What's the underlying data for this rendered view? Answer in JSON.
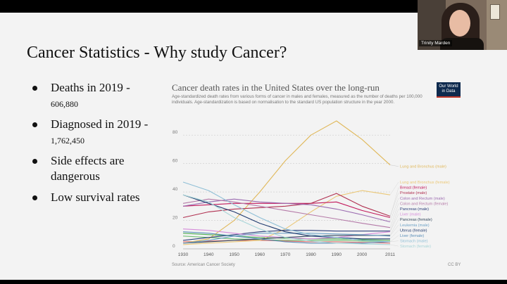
{
  "slide": {
    "title": "Cancer Statistics - Why study Cancer?",
    "bullets": [
      {
        "main": "Deaths in 2019 -",
        "detail": "606,880"
      },
      {
        "main": "Diagnosed in 2019 -",
        "detail": "1,762,450"
      },
      {
        "main": "Side effects are dangerous",
        "detail": ""
      },
      {
        "main": "Low survival rates",
        "detail": ""
      }
    ]
  },
  "webcam": {
    "participant_name": "Trinity Marden"
  },
  "chart": {
    "logo_line1": "Our World",
    "logo_line2": "in Data",
    "source": "Source: American Cancer Society",
    "license": "CC BY"
  },
  "chart_data": {
    "type": "line",
    "title": "Cancer death rates in the United States over the long-run",
    "subtitle": "Age-standardized death rates from various forms of cancer in males and females, measured as the number of deaths per 100,000 individuals. Age-standardization is based on normalisation to the standard US population structure in the year 2000.",
    "xlim": [
      1930,
      2011
    ],
    "ylim": [
      0,
      90
    ],
    "x_ticks": [
      "1930",
      "1940",
      "1950",
      "1960",
      "1970",
      "1980",
      "1990",
      "2000",
      "2011"
    ],
    "y_ticks": [
      "0",
      "20",
      "40",
      "60",
      "80"
    ],
    "grid": "horizontal-dotted",
    "series": [
      {
        "name": "Lung and Bronchus (male)",
        "color": "#e0b85a",
        "points": [
          [
            1930,
            4
          ],
          [
            1940,
            7
          ],
          [
            1950,
            20
          ],
          [
            1960,
            40
          ],
          [
            1970,
            62
          ],
          [
            1980,
            80
          ],
          [
            1990,
            90
          ],
          [
            2000,
            77
          ],
          [
            2011,
            59
          ]
        ]
      },
      {
        "name": "Lung and Bronchus (female)",
        "color": "#ebc878",
        "points": [
          [
            1930,
            3
          ],
          [
            1940,
            4
          ],
          [
            1950,
            5
          ],
          [
            1960,
            6
          ],
          [
            1970,
            14
          ],
          [
            1980,
            26
          ],
          [
            1990,
            37
          ],
          [
            2000,
            41
          ],
          [
            2011,
            38
          ]
        ]
      },
      {
        "name": "Breast (female)",
        "color": "#c2185b",
        "points": [
          [
            1930,
            30
          ],
          [
            1940,
            31
          ],
          [
            1950,
            32
          ],
          [
            1960,
            32
          ],
          [
            1970,
            32
          ],
          [
            1980,
            32
          ],
          [
            1990,
            33
          ],
          [
            2000,
            27
          ],
          [
            2011,
            22
          ]
        ]
      },
      {
        "name": "Prostate (male)",
        "color": "#b03050",
        "points": [
          [
            1930,
            22
          ],
          [
            1940,
            26
          ],
          [
            1950,
            28
          ],
          [
            1960,
            29
          ],
          [
            1970,
            30
          ],
          [
            1980,
            32
          ],
          [
            1990,
            39
          ],
          [
            2000,
            30
          ],
          [
            2011,
            23
          ]
        ]
      },
      {
        "name": "Colon and Rectum (male)",
        "color": "#9b6bb0",
        "points": [
          [
            1930,
            30
          ],
          [
            1940,
            33
          ],
          [
            1950,
            35
          ],
          [
            1960,
            33
          ],
          [
            1970,
            32
          ],
          [
            1980,
            31
          ],
          [
            1990,
            28
          ],
          [
            2000,
            24
          ],
          [
            2011,
            19
          ]
        ]
      },
      {
        "name": "Colon and Rectum (female)",
        "color": "#b57aa8",
        "points": [
          [
            1930,
            32
          ],
          [
            1940,
            35
          ],
          [
            1950,
            33
          ],
          [
            1960,
            30
          ],
          [
            1970,
            27
          ],
          [
            1980,
            24
          ],
          [
            1990,
            21
          ],
          [
            2000,
            18
          ],
          [
            2011,
            15
          ]
        ]
      },
      {
        "name": "Pancreas (male)",
        "color": "#2c3e7a",
        "points": [
          [
            1930,
            6
          ],
          [
            1940,
            8
          ],
          [
            1950,
            10
          ],
          [
            1960,
            12
          ],
          [
            1970,
            13
          ],
          [
            1980,
            13
          ],
          [
            1990,
            12.5
          ],
          [
            2000,
            12.5
          ],
          [
            2011,
            12.5
          ]
        ]
      },
      {
        "name": "Liver (male)",
        "color": "#d58bd9",
        "points": [
          [
            1930,
            14
          ],
          [
            1940,
            13
          ],
          [
            1950,
            11
          ],
          [
            1960,
            9
          ],
          [
            1970,
            8
          ],
          [
            1980,
            7
          ],
          [
            1990,
            8
          ],
          [
            2000,
            10
          ],
          [
            2011,
            12
          ]
        ]
      },
      {
        "name": "Pancreas (female)",
        "color": "#34495e",
        "points": [
          [
            1930,
            4
          ],
          [
            1940,
            5
          ],
          [
            1950,
            6
          ],
          [
            1960,
            7
          ],
          [
            1970,
            8
          ],
          [
            1980,
            9
          ],
          [
            1990,
            9.5
          ],
          [
            2000,
            9.5
          ],
          [
            2011,
            9.5
          ]
        ]
      },
      {
        "name": "Leukemia (male)",
        "color": "#6fa3c7",
        "points": [
          [
            1930,
            4
          ],
          [
            1940,
            6
          ],
          [
            1950,
            9
          ],
          [
            1960,
            11
          ],
          [
            1970,
            11
          ],
          [
            1980,
            11
          ],
          [
            1990,
            10.5
          ],
          [
            2000,
            10
          ],
          [
            2011,
            9
          ]
        ]
      },
      {
        "name": "Uterus (female)",
        "color": "#1f3a6e",
        "points": [
          [
            1930,
            38
          ],
          [
            1940,
            32
          ],
          [
            1950,
            26
          ],
          [
            1960,
            18
          ],
          [
            1970,
            12
          ],
          [
            1980,
            9
          ],
          [
            1990,
            8
          ],
          [
            2000,
            7
          ],
          [
            2011,
            7
          ]
        ]
      },
      {
        "name": "Liver (female)",
        "color": "#5b8fb9",
        "points": [
          [
            1930,
            12
          ],
          [
            1940,
            11
          ],
          [
            1950,
            9
          ],
          [
            1960,
            7
          ],
          [
            1970,
            5
          ],
          [
            1980,
            4
          ],
          [
            1990,
            4
          ],
          [
            2000,
            4
          ],
          [
            2011,
            5
          ]
        ]
      },
      {
        "name": "Stomach (male)",
        "color": "#8fbfd6",
        "points": [
          [
            1930,
            47
          ],
          [
            1940,
            41
          ],
          [
            1950,
            31
          ],
          [
            1960,
            22
          ],
          [
            1970,
            14
          ],
          [
            1980,
            10
          ],
          [
            1990,
            8
          ],
          [
            2000,
            6
          ],
          [
            2011,
            5
          ]
        ]
      },
      {
        "name": "Stomach (female)",
        "color": "#a8d5d8",
        "points": [
          [
            1930,
            38
          ],
          [
            1940,
            33
          ],
          [
            1950,
            22
          ],
          [
            1960,
            14
          ],
          [
            1970,
            8
          ],
          [
            1980,
            5.5
          ],
          [
            1990,
            4
          ],
          [
            2000,
            3.5
          ],
          [
            2011,
            3
          ]
        ]
      }
    ],
    "extra_lines": [
      {
        "color": "#6fbf73",
        "points": [
          [
            1930,
            9
          ],
          [
            1940,
            8
          ],
          [
            1950,
            7
          ],
          [
            1960,
            6.5
          ],
          [
            1970,
            6
          ],
          [
            1980,
            6
          ],
          [
            1990,
            6
          ],
          [
            2000,
            5.5
          ],
          [
            2011,
            5
          ]
        ]
      },
      {
        "color": "#4caf50",
        "points": [
          [
            1930,
            11
          ],
          [
            1940,
            10
          ],
          [
            1950,
            9
          ],
          [
            1960,
            8
          ],
          [
            1970,
            7.5
          ],
          [
            1980,
            7
          ],
          [
            1990,
            7
          ],
          [
            2000,
            6.5
          ],
          [
            2011,
            6
          ]
        ]
      },
      {
        "color": "#e57373",
        "points": [
          [
            1930,
            5
          ],
          [
            1940,
            5.5
          ],
          [
            1950,
            6
          ],
          [
            1960,
            6
          ],
          [
            1970,
            5.5
          ],
          [
            1980,
            5
          ],
          [
            1990,
            5
          ],
          [
            2000,
            4.5
          ],
          [
            2011,
            4
          ]
        ]
      }
    ]
  }
}
